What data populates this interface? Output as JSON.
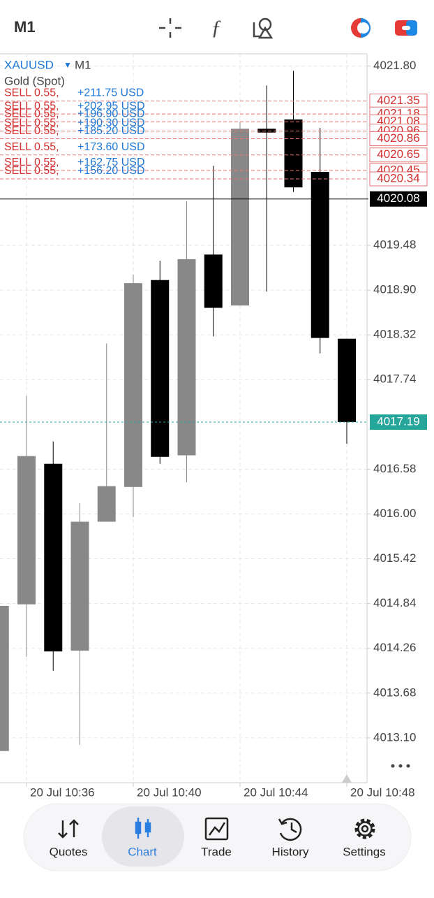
{
  "top_bar": {
    "timeframe": "M1"
  },
  "chart_data": {
    "type": "candlestick",
    "symbol": "XAUUSD",
    "timeframe": "M1",
    "subtitle": "Gold (Spot)",
    "categories": [
      null,
      "20 Jul 10:36",
      null,
      null,
      null,
      "20 Jul 10:40",
      null,
      null,
      null,
      "20 Jul 10:44",
      null,
      null,
      null,
      "20 Jul 10:48"
    ],
    "open": [
      4012.93,
      4014.83,
      4016.65,
      4014.23,
      4015.9,
      4016.35,
      4019.03,
      4016.76,
      4019.36,
      4018.7,
      4020.99,
      4021.11,
      4020.43,
      4018.27
    ],
    "high": [
      4014.81,
      4017.53,
      4016.94,
      4016.14,
      4018.21,
      4019.1,
      4019.28,
      4020.05,
      4020.51,
      4021.08,
      4021.55,
      4021.74,
      4021.0,
      4018.27
    ],
    "low": [
      4012.93,
      4014.15,
      4013.97,
      4013.01,
      4015.9,
      4015.96,
      4016.65,
      4016.41,
      4018.3,
      4018.7,
      4018.88,
      4020.17,
      4018.08,
      4016.91
    ],
    "close": [
      4014.81,
      4016.75,
      4014.22,
      4015.9,
      4016.36,
      4018.99,
      4016.74,
      4019.3,
      4018.67,
      4020.99,
      4020.94,
      4020.23,
      4018.28,
      4017.19
    ],
    "up_color": "#888888",
    "down_color": "#000000",
    "ylim": [
      4012.52,
      4021.96
    ],
    "yticks": [
      {
        "value": 4021.8,
        "label": "4021.80"
      },
      4019.48,
      {
        "value": 4018.9,
        "label": "4018.90"
      },
      4018.32,
      4017.74,
      4016.58,
      {
        "value": 4016,
        "label": "4016.00"
      },
      4015.42,
      4014.84,
      4014.26,
      4013.68,
      {
        "value": 4013.1,
        "label": "4013.10"
      }
    ],
    "grid": true,
    "positions": [
      {
        "price": 4021.35,
        "side": "SELL 0.55,",
        "profit": "+211.75 USD"
      },
      {
        "price": 4021.18,
        "side": "SELL 0.55,",
        "profit": "+202.95 USD"
      },
      {
        "price": 4021.08,
        "side": "SELL 0.55,",
        "profit": "+196.90 USD"
      },
      {
        "price": 4020.96,
        "side": "SELL 0.55,",
        "profit": "+190.30 USD"
      },
      {
        "price": 4020.86,
        "side": "SELL 0.55,",
        "profit": "+185.20 USD"
      },
      {
        "price": 4020.65,
        "side": "SELL 0.55,",
        "profit": "+173.60 USD"
      },
      {
        "price": 4020.45,
        "side": "SELL 0.55,",
        "profit": "+162.75 USD"
      },
      {
        "price": 4020.34,
        "side": "SELL 0.55,",
        "profit": "+156.20 USD"
      }
    ],
    "price_lines": [
      {
        "price": 4020.08,
        "color": "#000000",
        "dash": false
      },
      {
        "price": 4017.19,
        "color": "#26a69a",
        "dash": true
      }
    ]
  },
  "nav": {
    "items": [
      "Quotes",
      "Chart",
      "Trade",
      "History",
      "Settings"
    ],
    "active": 1
  }
}
